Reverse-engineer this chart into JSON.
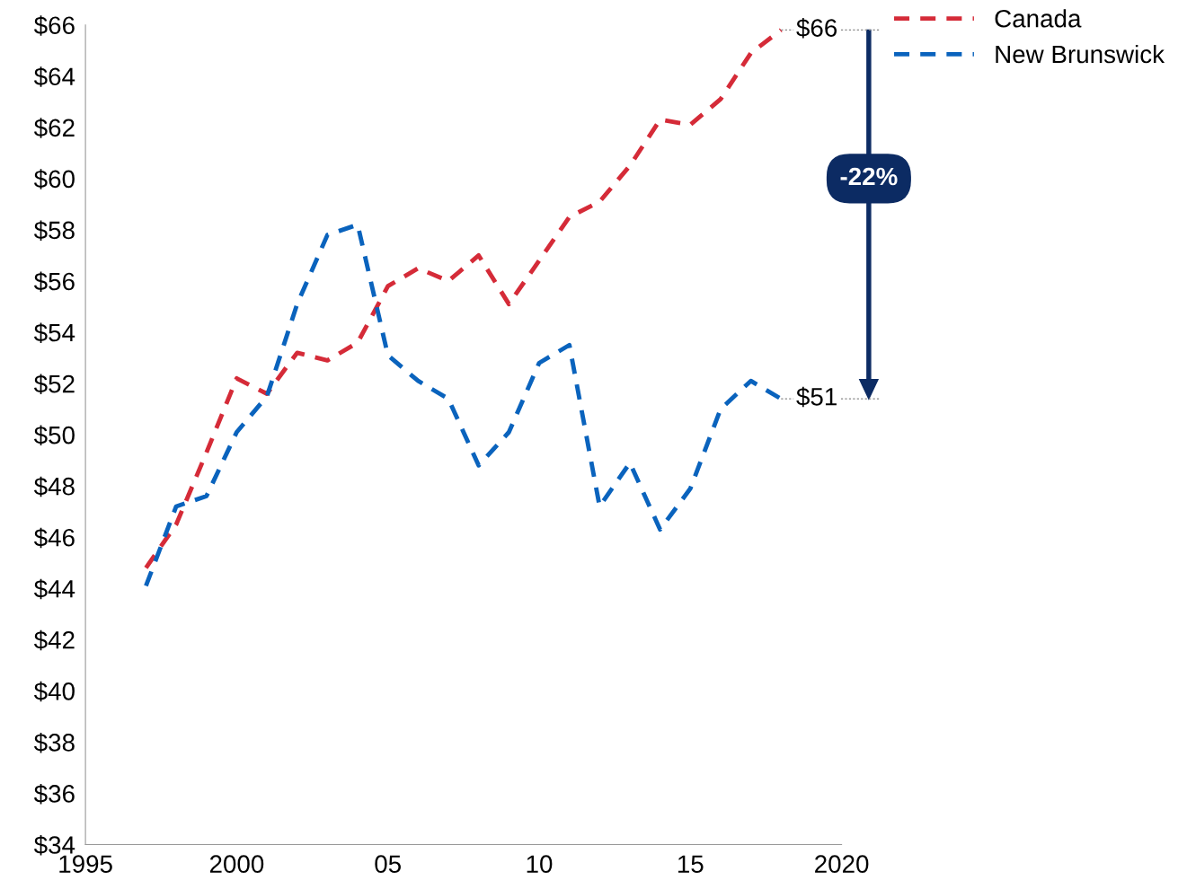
{
  "chart_data": {
    "type": "line",
    "x": [
      1997,
      1998,
      1999,
      2000,
      2001,
      2002,
      2003,
      2004,
      2005,
      2006,
      2007,
      2008,
      2009,
      2010,
      2011,
      2012,
      2013,
      2014,
      2015,
      2016,
      2017,
      2018
    ],
    "series": [
      {
        "name": "Canada",
        "color": "#d52b38",
        "values": [
          44.8,
          46.5,
          49.3,
          52.2,
          51.6,
          53.2,
          52.9,
          53.6,
          55.8,
          56.5,
          56.0,
          57.0,
          55.1,
          56.8,
          58.5,
          59.1,
          60.5,
          62.3,
          62.1,
          63.1,
          64.9,
          65.8
        ]
      },
      {
        "name": "New Brunswick",
        "color": "#0a63bd",
        "values": [
          44.1,
          47.2,
          47.6,
          50.1,
          51.5,
          55.1,
          57.8,
          58.2,
          53.1,
          52.1,
          51.4,
          48.8,
          50.1,
          52.8,
          53.5,
          47.2,
          48.9,
          46.3,
          47.9,
          51.0,
          52.1,
          51.4
        ]
      }
    ],
    "xlim": [
      1995,
      2020
    ],
    "xticks": [
      1995,
      2000,
      {
        "value": 2005,
        "label": "05"
      },
      {
        "value": 2010,
        "label": "10"
      },
      {
        "value": 2015,
        "label": "15"
      },
      2020
    ],
    "ylim": [
      34,
      66
    ],
    "yticks": [
      {
        "value": 34,
        "label": "$34"
      },
      {
        "value": 36,
        "label": "$36"
      },
      {
        "value": 38,
        "label": "$38"
      },
      {
        "value": 40,
        "label": "$40"
      },
      {
        "value": 42,
        "label": "$42"
      },
      {
        "value": 44,
        "label": "$44"
      },
      {
        "value": 46,
        "label": "$46"
      },
      {
        "value": 48,
        "label": "$48"
      },
      {
        "value": 50,
        "label": "$50"
      },
      {
        "value": 52,
        "label": "$52"
      },
      {
        "value": 54,
        "label": "$54"
      },
      {
        "value": 56,
        "label": "$56"
      },
      {
        "value": 58,
        "label": "$58"
      },
      {
        "value": 60,
        "label": "$60"
      },
      {
        "value": 62,
        "label": "$62"
      },
      {
        "value": 64,
        "label": "$64"
      },
      {
        "value": 66,
        "label": "$66"
      }
    ],
    "annotations": [
      {
        "text": "$66",
        "x": 2018,
        "y": 65.8
      },
      {
        "text": "$51",
        "x": 2018,
        "y": 51.4
      },
      "-22%"
    ],
    "grid": false,
    "legend": "top right",
    "marker": "none",
    "line_style": "dashed"
  }
}
